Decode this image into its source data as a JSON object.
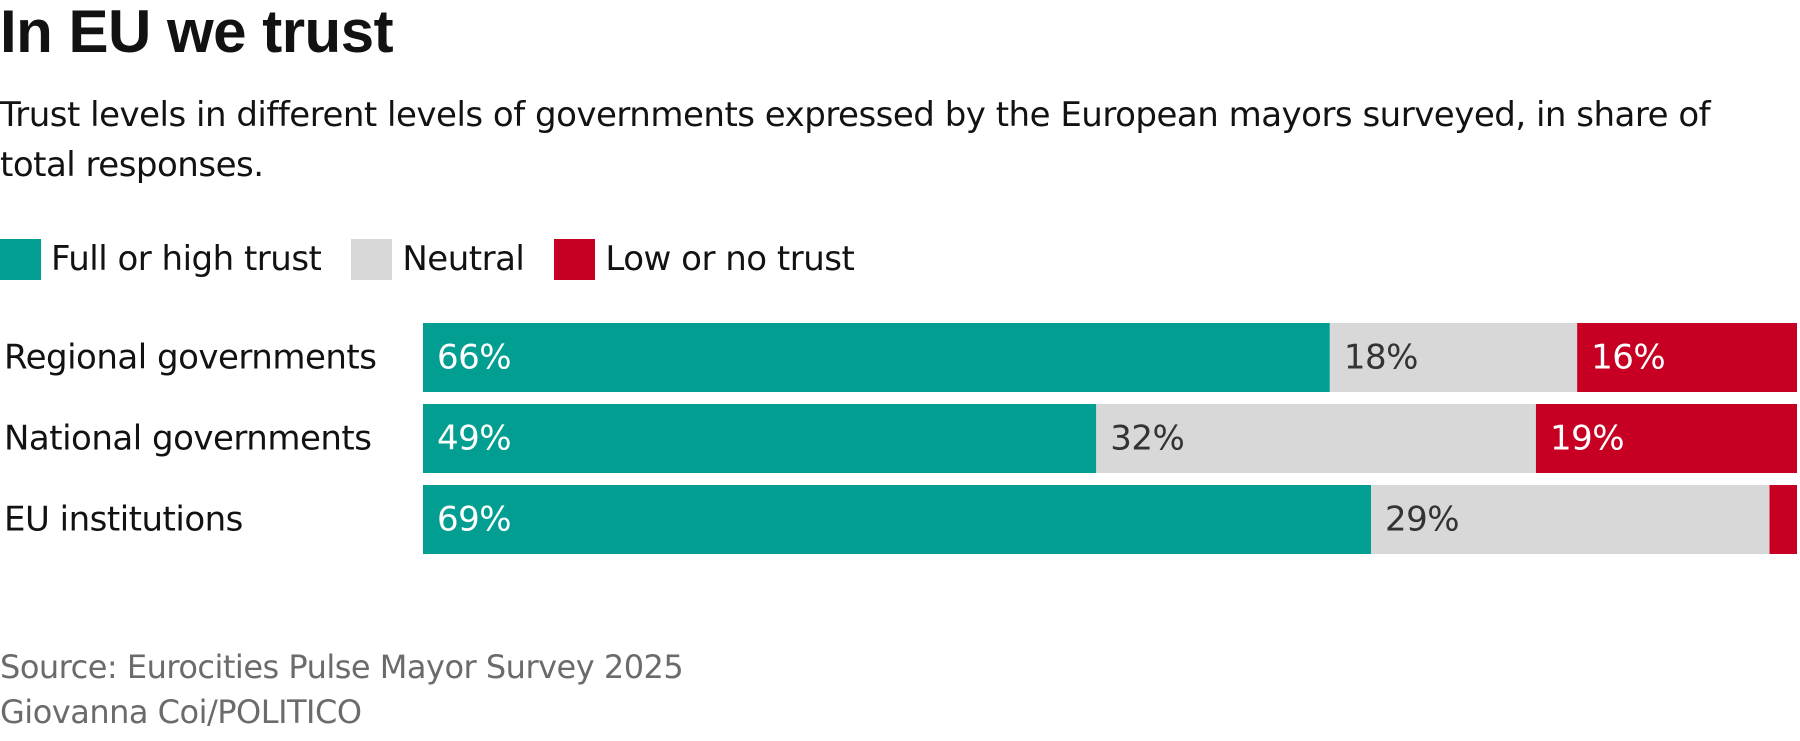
{
  "title": "In EU we trust",
  "subtitle": "Trust levels in different levels of governments expressed by the European mayors surveyed, in share of total responses.",
  "source": "Source: Eurocities Pulse Mayor Survey 2025",
  "credit": "Giovanna Coi/POLITICO",
  "colors": {
    "full_or_high": "#029e92",
    "neutral": "#d8d8d8",
    "low_or_no": "#c70023",
    "label_on_dark": "#ffffff",
    "label_on_light": "#333333"
  },
  "chart_data": {
    "type": "bar",
    "orientation": "horizontal",
    "stacked": true,
    "title": "In EU we trust",
    "subtitle": "Trust levels in different levels of governments expressed by the European mayors surveyed, in share of total responses.",
    "categories": [
      "Regional governments",
      "National governments",
      "EU institutions"
    ],
    "series": [
      {
        "name": "Full or high trust",
        "color": "#029e92",
        "values": [
          66,
          49,
          69
        ],
        "labels": [
          "66%",
          "49%",
          "69%"
        ]
      },
      {
        "name": "Neutral",
        "color": "#d8d8d8",
        "values": [
          18,
          32,
          29
        ],
        "labels": [
          "18%",
          "32%",
          "29%"
        ]
      },
      {
        "name": "Low or no trust",
        "color": "#c70023",
        "values": [
          16,
          19,
          2
        ],
        "labels": [
          "16%",
          "19%",
          ""
        ]
      }
    ],
    "xlim": [
      0,
      100
    ],
    "grid": false,
    "legend": "top-left"
  }
}
